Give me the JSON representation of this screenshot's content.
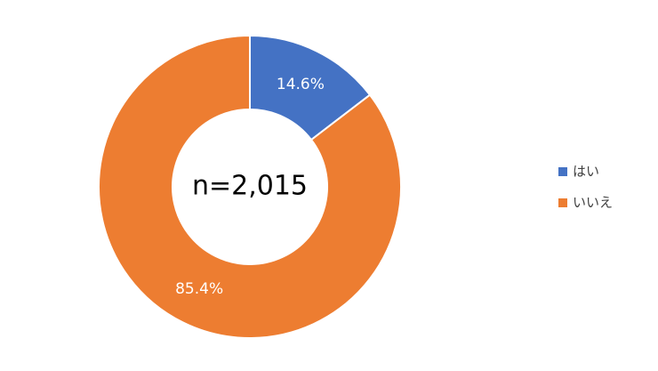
{
  "chart_data": {
    "type": "pie",
    "donut": true,
    "center_text": "n=2,015",
    "categories": [
      "はい",
      "いいえ"
    ],
    "values": [
      14.6,
      85.4
    ],
    "value_labels": [
      "14.6%",
      "85.4%"
    ],
    "colors": [
      "#4472c4",
      "#ed7d31"
    ],
    "legend": "right"
  }
}
